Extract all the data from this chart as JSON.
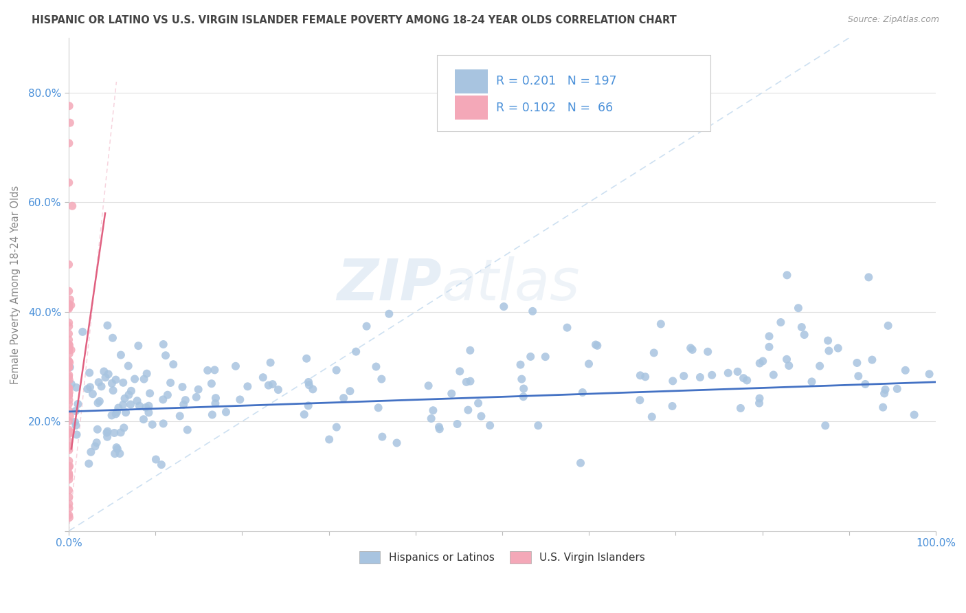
{
  "title": "HISPANIC OR LATINO VS U.S. VIRGIN ISLANDER FEMALE POVERTY AMONG 18-24 YEAR OLDS CORRELATION CHART",
  "source": "Source: ZipAtlas.com",
  "ylabel": "Female Poverty Among 18-24 Year Olds",
  "xlim": [
    0.0,
    1.0
  ],
  "ylim": [
    0.0,
    0.9
  ],
  "x_ticks": [
    0.0,
    0.1,
    0.2,
    0.3,
    0.4,
    0.5,
    0.6,
    0.7,
    0.8,
    0.9,
    1.0
  ],
  "x_tick_labels": [
    "0.0%",
    "",
    "",
    "",
    "",
    "",
    "",
    "",
    "",
    "",
    "100.0%"
  ],
  "y_ticks": [
    0.0,
    0.2,
    0.4,
    0.6,
    0.8
  ],
  "y_tick_labels": [
    "",
    "20.0%",
    "40.0%",
    "60.0%",
    "80.0%"
  ],
  "legend_labels": [
    "Hispanics or Latinos",
    "U.S. Virgin Islanders"
  ],
  "series1_color": "#a8c4e0",
  "series2_color": "#f4a8b8",
  "series1_R": 0.201,
  "series1_N": 197,
  "series2_R": 0.102,
  "series2_N": 66,
  "watermark_zip": "ZIP",
  "watermark_atlas": "atlas",
  "background_color": "#ffffff",
  "grid_color": "#d8d8d8",
  "title_color": "#444444",
  "tick_label_color": "#4a90d9",
  "axis_label_color": "#888888",
  "legend_R_color": "#4a90d9",
  "diagonal_color_blue": "#c8ddf0",
  "diagonal_color_pink": "#f5ccd8",
  "trend_line_color_blue": "#4472c4",
  "trend_line_color_pink": "#e06080"
}
